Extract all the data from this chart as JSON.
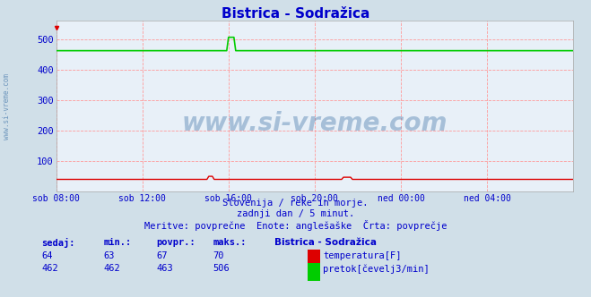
{
  "title": "Bistrica - Sodražica",
  "background_color": "#d0dfe8",
  "plot_bg_color": "#e8f0f8",
  "grid_color": "#ff9999",
  "title_color": "#0000cc",
  "title_fontsize": 11,
  "tick_color": "#0000cc",
  "x_tick_labels": [
    "sob 08:00",
    "sob 12:00",
    "sob 16:00",
    "sob 20:00",
    "ned 00:00",
    "ned 04:00"
  ],
  "x_tick_positions": [
    0,
    48,
    96,
    144,
    192,
    240
  ],
  "ylim": [
    0,
    560
  ],
  "yticks": [
    100,
    200,
    300,
    400,
    500
  ],
  "xlim": [
    0,
    288
  ],
  "temp_color": "#dd0000",
  "flow_color": "#00cc00",
  "temp_value": 64,
  "temp_min": 63,
  "temp_avg": 67,
  "temp_max": 70,
  "flow_value": 462,
  "flow_min": 462,
  "flow_avg": 463,
  "flow_max": 506,
  "watermark": "www.si-vreme.com",
  "watermark_color": "#4477aa",
  "watermark_alpha": 0.4,
  "subtitle1": "Slovenija / reke in morje.",
  "subtitle2": "zadnji dan / 5 minut.",
  "subtitle3": "Meritve: povprečne  Enote: anglešaške  Črta: povprečje",
  "legend_title": "Bistrica - Sodražica",
  "legend_label1": "temperatura[F]",
  "legend_label2": "pretok[čevelj3/min]",
  "label_sedaj": "sedaj:",
  "label_min": "min.:",
  "label_povpr": "povpr.:",
  "label_maks": "maks.:",
  "side_text": "www.si-vreme.com",
  "flow_baseline": 462,
  "flow_spike_idx": 96,
  "flow_spike_val": 506,
  "temp_baseline": 40
}
